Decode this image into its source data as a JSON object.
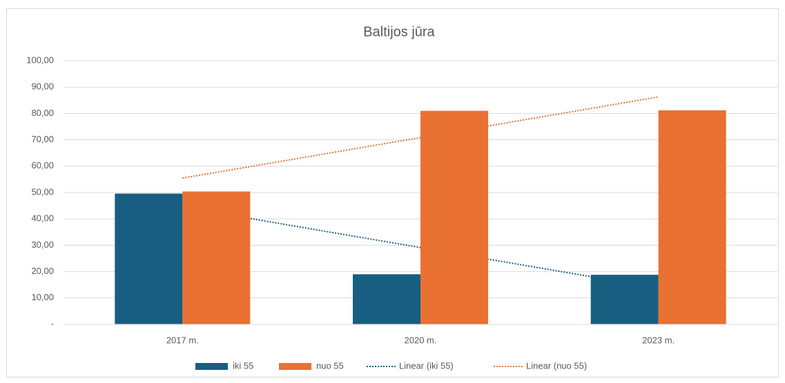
{
  "chart_data": {
    "type": "bar",
    "title": "Baltijos jūra",
    "categories": [
      "2017 m.",
      "2020 m.",
      "2023 m."
    ],
    "series": [
      {
        "name": "iki 55",
        "color": "#175e81",
        "values": [
          49.6,
          19.0,
          18.8
        ]
      },
      {
        "name": "nuo 55",
        "color": "#e97132",
        "values": [
          50.4,
          81.0,
          81.2
        ]
      },
      {
        "name": "Linear (iki 55)",
        "type": "trendline",
        "color": "#175e81",
        "values": [
          44.53,
          29.13,
          13.73
        ]
      },
      {
        "name": "Linear (nuo 55)",
        "type": "trendline",
        "color": "#e97132",
        "values": [
          55.47,
          70.87,
          86.27
        ]
      }
    ],
    "ylim": [
      0,
      100
    ],
    "yticks": [
      {
        "value": 0,
        "label": "-"
      },
      {
        "value": 10,
        "label": "10,00"
      },
      {
        "value": 20,
        "label": "20,00"
      },
      {
        "value": 30,
        "label": "30,00"
      },
      {
        "value": 40,
        "label": "40,00"
      },
      {
        "value": 50,
        "label": "50,00"
      },
      {
        "value": 60,
        "label": "60,00"
      },
      {
        "value": 70,
        "label": "70,00"
      },
      {
        "value": 80,
        "label": "80,00"
      },
      {
        "value": 90,
        "label": "90,00"
      },
      {
        "value": 100,
        "label": "100,00"
      }
    ],
    "grid": true,
    "legend": "bottom"
  }
}
